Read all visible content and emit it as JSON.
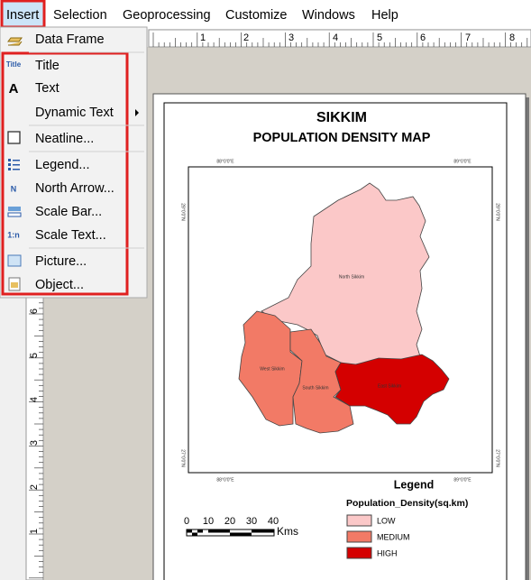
{
  "menu_bar": [
    "Insert",
    "Selection",
    "Geoprocessing",
    "Customize",
    "Windows",
    "Help"
  ],
  "insert_menu": [
    {
      "label": "Data Frame"
    },
    {
      "label": "Title",
      "icon": "Title"
    },
    {
      "label": "Text",
      "icon": "A"
    },
    {
      "label": "Dynamic Text"
    },
    {
      "label": "Neatline..."
    },
    {
      "label": "Legend..."
    },
    {
      "label": "North Arrow...",
      "icon": "N"
    },
    {
      "label": "Scale Bar..."
    },
    {
      "label": "Scale Text...",
      "icon": "1:n"
    },
    {
      "label": "Picture..."
    },
    {
      "label": "Object..."
    }
  ],
  "top_ruler": [
    "1",
    "2",
    "3",
    "4",
    "5",
    "6",
    "7",
    "8"
  ],
  "left_ruler": [
    "6",
    "5",
    "4",
    "3",
    "2",
    "1"
  ],
  "map": {
    "title": "SIKKIM",
    "subtitle": "POPULATION DENSITY MAP",
    "districts": [
      "North Sikkim",
      "West Sikkim",
      "South Sikkim",
      "East Sikkim"
    ],
    "graticule": {
      "longitudes": [
        "88°0'0\"E",
        "89°0'0\"E"
      ],
      "latitudes": [
        "28°0'0\"N",
        "27°0'0\"N"
      ]
    },
    "legend": {
      "heading": "Legend",
      "field": "Population_Density(sq.km)",
      "classes": [
        "LOW",
        "MEDIUM",
        "HIGH"
      ]
    },
    "scale_bar": {
      "ticks": [
        "0",
        "10",
        "20",
        "30",
        "40"
      ],
      "unit": "Kms"
    }
  }
}
